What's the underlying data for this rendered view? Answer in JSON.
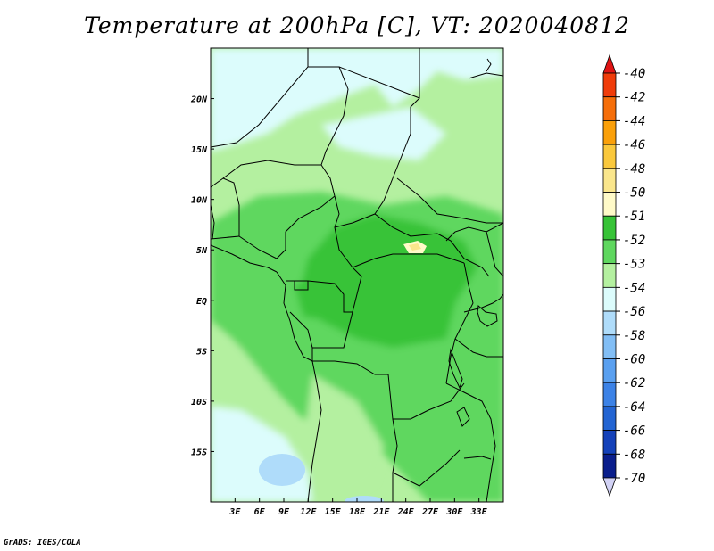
{
  "title": "Temperature at 200hPa [C], VT: 2020040812",
  "credit": "GrADS: IGES/COLA",
  "map": {
    "lon_range": [
      0,
      36
    ],
    "lat_range": [
      -20,
      25
    ],
    "lon_ticks": [
      {
        "value": 3,
        "label": "3E"
      },
      {
        "value": 6,
        "label": "6E"
      },
      {
        "value": 9,
        "label": "9E"
      },
      {
        "value": 12,
        "label": "12E"
      },
      {
        "value": 15,
        "label": "15E"
      },
      {
        "value": 18,
        "label": "18E"
      },
      {
        "value": 21,
        "label": "21E"
      },
      {
        "value": 24,
        "label": "24E"
      },
      {
        "value": 27,
        "label": "27E"
      },
      {
        "value": 30,
        "label": "30E"
      },
      {
        "value": 33,
        "label": "33E"
      }
    ],
    "lat_ticks": [
      {
        "value": 20,
        "label": "20N"
      },
      {
        "value": 15,
        "label": "15N"
      },
      {
        "value": 10,
        "label": "10N"
      },
      {
        "value": 5,
        "label": "5N"
      },
      {
        "value": 0,
        "label": "EQ"
      },
      {
        "value": -5,
        "label": "5S"
      },
      {
        "value": -10,
        "label": "10S"
      },
      {
        "value": -15,
        "label": "15S"
      }
    ]
  },
  "colorbar": {
    "labels": [
      "-40",
      "-42",
      "-44",
      "-46",
      "-48",
      "-50",
      "-51",
      "-52",
      "-53",
      "-54",
      "-56",
      "-58",
      "-60",
      "-62",
      "-64",
      "-66",
      "-68",
      "-70"
    ],
    "colors": [
      "#e01414",
      "#f03c0a",
      "#f56e0a",
      "#faa00a",
      "#fac83c",
      "#fae68c",
      "#fffac8",
      "#37c337",
      "#5fd75f",
      "#b4f0a0",
      "#dcfcfc",
      "#afdcfa",
      "#82bef5",
      "#5aa0f0",
      "#3c82e6",
      "#2364d2",
      "#1441b9",
      "#0a1e8c",
      "#d2d2f5"
    ]
  }
}
